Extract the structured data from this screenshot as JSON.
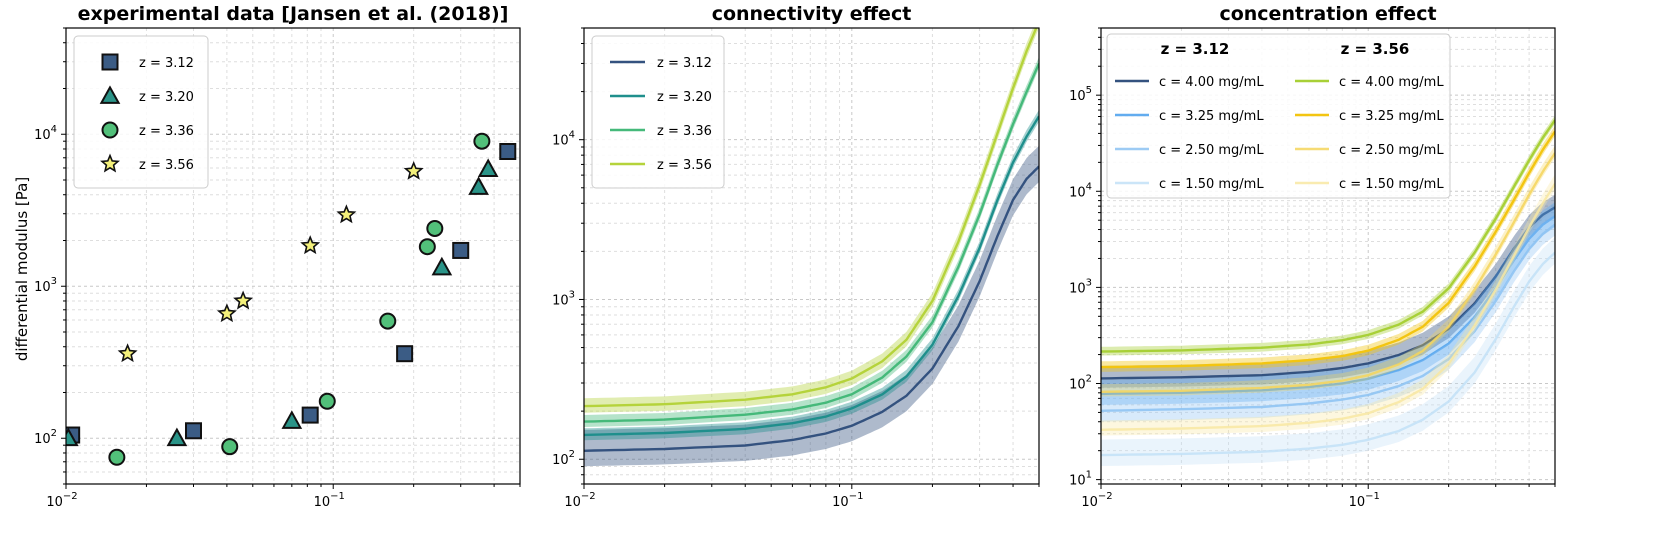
{
  "figure": {
    "ylabel": "differential modulus [Pa]"
  },
  "chart_data": [
    {
      "type": "scatter",
      "title": "experimental data [Jansen et al. (2018)]",
      "xlabel": "",
      "ylabel": "differential modulus [Pa]",
      "xscale": "log",
      "yscale": "log",
      "xlim": [
        0.01,
        0.5
      ],
      "ylim": [
        50,
        50000
      ],
      "xticks": [
        {
          "value": 0.01,
          "label": "10",
          "exp": "−2"
        },
        {
          "value": 0.1,
          "label": "10",
          "exp": "−1"
        }
      ],
      "yticks": [
        {
          "value": 100,
          "label": "10",
          "exp": "2"
        },
        {
          "value": 1000,
          "label": "10",
          "exp": "3"
        },
        {
          "value": 10000,
          "label": "10",
          "exp": "4"
        }
      ],
      "grid": true,
      "legend_position": "top-left",
      "series": [
        {
          "name": "z = 3.12",
          "marker": "square",
          "color": "#3b5c85",
          "points": [
            [
              0.0105,
              105
            ],
            [
              0.03,
              112
            ],
            [
              0.082,
              142
            ],
            [
              0.185,
              360
            ],
            [
              0.3,
              1720
            ],
            [
              0.45,
              7700
            ]
          ]
        },
        {
          "name": "z = 3.20",
          "marker": "triangle",
          "color": "#2a9488",
          "points": [
            [
              0.0102,
              100
            ],
            [
              0.026,
              100
            ],
            [
              0.07,
              130
            ],
            [
              0.255,
              1330
            ],
            [
              0.35,
              4500
            ],
            [
              0.38,
              5900
            ]
          ]
        },
        {
          "name": "z = 3.36",
          "marker": "circle",
          "color": "#52c07a",
          "points": [
            [
              0.0155,
              75
            ],
            [
              0.041,
              88
            ],
            [
              0.095,
              175
            ],
            [
              0.16,
              590
            ],
            [
              0.225,
              1820
            ],
            [
              0.24,
              2400
            ],
            [
              0.36,
              9000
            ]
          ]
        },
        {
          "name": "z = 3.56",
          "marker": "star",
          "color": "#f3f07a",
          "points": [
            [
              0.017,
              360
            ],
            [
              0.04,
              660
            ],
            [
              0.046,
              800
            ],
            [
              0.082,
              1850
            ],
            [
              0.112,
              2950
            ],
            [
              0.2,
              5700
            ]
          ]
        }
      ]
    },
    {
      "type": "line",
      "title": "connectivity effect",
      "xlabel": "",
      "ylabel": "",
      "xscale": "log",
      "yscale": "log",
      "xlim": [
        0.01,
        0.5
      ],
      "ylim": [
        70,
        50000
      ],
      "xticks": [
        {
          "value": 0.01,
          "label": "10",
          "exp": "−2"
        },
        {
          "value": 0.1,
          "label": "10",
          "exp": "−1"
        }
      ],
      "yticks": [
        {
          "value": 100,
          "label": "10",
          "exp": "2"
        },
        {
          "value": 1000,
          "label": "10",
          "exp": "3"
        },
        {
          "value": 10000,
          "label": "10",
          "exp": "4"
        }
      ],
      "grid": true,
      "legend_position": "top-left",
      "x": [
        0.01,
        0.02,
        0.04,
        0.06,
        0.08,
        0.1,
        0.13,
        0.16,
        0.2,
        0.25,
        0.3,
        0.35,
        0.4,
        0.45,
        0.5
      ],
      "series": [
        {
          "name": "z = 3.12",
          "color": "#34527f",
          "values": [
            113,
            116,
            122,
            132,
            145,
            162,
            198,
            250,
            370,
            680,
            1300,
            2500,
            4200,
            5700,
            6800
          ],
          "band": [
            1.25,
            1.35
          ]
        },
        {
          "name": "z = 3.20",
          "color": "#1f8f8c",
          "values": [
            142,
            146,
            155,
            168,
            185,
            208,
            255,
            330,
            520,
            1050,
            2100,
            4200,
            7200,
            10500,
            14000
          ],
          "band": [
            1.08,
            1.1
          ]
        },
        {
          "name": "z = 3.36",
          "color": "#45b97a",
          "values": [
            172,
            177,
            190,
            205,
            226,
            255,
            325,
            440,
            720,
            1600,
            3400,
            7000,
            12500,
            20000,
            30000
          ],
          "band": [
            1.08,
            1.1
          ]
        },
        {
          "name": "z = 3.56",
          "color": "#b5d33b",
          "values": [
            215,
            221,
            236,
            255,
            282,
            320,
            410,
            560,
            980,
            2300,
            5200,
            11000,
            21000,
            36000,
            55000
          ],
          "band": [
            1.1,
            1.12
          ]
        }
      ]
    },
    {
      "type": "line",
      "title": "concentration effect",
      "xlabel": "",
      "ylabel": "",
      "xscale": "log",
      "yscale": "log",
      "xlim": [
        0.01,
        0.5
      ],
      "ylim": [
        9,
        500000
      ],
      "xticks": [
        {
          "value": 0.01,
          "label": "10",
          "exp": "−2"
        },
        {
          "value": 0.1,
          "label": "10",
          "exp": "−1"
        }
      ],
      "yticks": [
        {
          "value": 10,
          "label": "10",
          "exp": "1"
        },
        {
          "value": 100,
          "label": "10",
          "exp": "2"
        },
        {
          "value": 1000,
          "label": "10",
          "exp": "3"
        },
        {
          "value": 10000,
          "label": "10",
          "exp": "4"
        },
        {
          "value": 100000,
          "label": "10",
          "exp": "5"
        }
      ],
      "grid": true,
      "legend_position": "top",
      "legend_columns": [
        "z = 3.12",
        "z = 3.56"
      ],
      "x": [
        0.01,
        0.02,
        0.04,
        0.06,
        0.08,
        0.1,
        0.13,
        0.16,
        0.2,
        0.25,
        0.3,
        0.35,
        0.4,
        0.45,
        0.5
      ],
      "series": [
        {
          "group": "z = 3.12",
          "name": "c = 4.00 mg/mL",
          "color": "#34527f",
          "opacity": 1.0,
          "values": [
            113,
            116,
            122,
            132,
            145,
            162,
            198,
            250,
            370,
            680,
            1300,
            2500,
            4200,
            5700,
            6800
          ],
          "band": [
            1.25,
            1.35
          ]
        },
        {
          "group": "z = 3.12",
          "name": "c = 3.25 mg/mL",
          "color": "#5aa8ee",
          "opacity": 0.95,
          "values": [
            78,
            80,
            85,
            92,
            100,
            112,
            138,
            175,
            260,
            490,
            980,
            1900,
            3200,
            4500,
            5500
          ],
          "band": [
            1.3,
            1.4
          ]
        },
        {
          "group": "z = 3.12",
          "name": "c = 2.50 mg/mL",
          "color": "#8cc2f2",
          "opacity": 0.85,
          "values": [
            52,
            54,
            57,
            62,
            68,
            76,
            94,
            120,
            180,
            350,
            720,
            1450,
            2500,
            3600,
            4500
          ],
          "band": [
            1.3,
            1.45
          ]
        },
        {
          "group": "z = 3.12",
          "name": "c = 1.50 mg/mL",
          "color": "#c2e0f7",
          "opacity": 0.85,
          "values": [
            18,
            18.5,
            19.5,
            21,
            23,
            26,
            32,
            42,
            65,
            130,
            290,
            620,
            1150,
            1750,
            2300
          ],
          "band": [
            1.3,
            1.45
          ]
        },
        {
          "group": "z = 3.56",
          "name": "c = 4.00 mg/mL",
          "color": "#a8d037",
          "opacity": 1.0,
          "values": [
            215,
            221,
            236,
            255,
            282,
            320,
            410,
            560,
            980,
            2300,
            5200,
            11000,
            21000,
            36000,
            55000
          ],
          "band": [
            1.1,
            1.12
          ]
        },
        {
          "group": "z = 3.56",
          "name": "c = 3.25 mg/mL",
          "color": "#f3c511",
          "opacity": 1.0,
          "values": [
            148,
            152,
            162,
            175,
            193,
            220,
            285,
            390,
            690,
            1650,
            3800,
            8000,
            15500,
            27000,
            42000
          ],
          "band": [
            1.12,
            1.15
          ]
        },
        {
          "group": "z = 3.56",
          "name": "c = 2.50 mg/mL",
          "color": "#f5d55c",
          "opacity": 0.85,
          "values": [
            82,
            84,
            90,
            97,
            107,
            122,
            158,
            218,
            390,
            950,
            2200,
            4700,
            9200,
            16000,
            25000
          ],
          "band": [
            1.12,
            1.2
          ]
        },
        {
          "group": "z = 3.56",
          "name": "c = 1.50 mg/mL",
          "color": "#f8e8a2",
          "opacity": 0.85,
          "values": [
            33,
            34,
            36,
            39,
            43,
            49,
            64,
            88,
            160,
            400,
            950,
            2100,
            4200,
            7500,
            12000
          ],
          "band": [
            1.15,
            1.25
          ]
        }
      ]
    }
  ]
}
